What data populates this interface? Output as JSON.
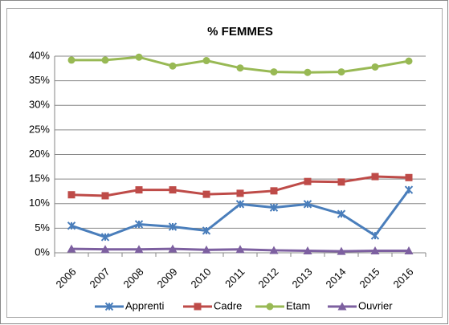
{
  "chart_data": {
    "type": "line",
    "title": "% FEMMES",
    "categories": [
      "2006",
      "2007",
      "2008",
      "2009",
      "2010",
      "2011",
      "2012",
      "2013",
      "2014",
      "2015",
      "2016"
    ],
    "series": [
      {
        "name": "Apprenti",
        "color": "#4a7ebb",
        "marker": "x",
        "values": [
          5.5,
          3.2,
          5.8,
          5.3,
          4.5,
          9.9,
          9.2,
          9.9,
          7.9,
          3.5,
          12.8
        ]
      },
      {
        "name": "Cadre",
        "color": "#be4b48",
        "marker": "square",
        "values": [
          11.8,
          11.6,
          12.8,
          12.8,
          11.9,
          12.1,
          12.6,
          14.5,
          14.4,
          15.5,
          15.3
        ]
      },
      {
        "name": "Etam",
        "color": "#98b954",
        "marker": "circle",
        "values": [
          39.2,
          39.2,
          39.8,
          38.0,
          39.1,
          37.6,
          36.8,
          36.7,
          36.8,
          37.8,
          39.0
        ]
      },
      {
        "name": "Ouvrier",
        "color": "#7d60a0",
        "marker": "triangle",
        "values": [
          0.8,
          0.7,
          0.7,
          0.8,
          0.6,
          0.7,
          0.5,
          0.4,
          0.3,
          0.4,
          0.4
        ]
      }
    ],
    "ylim": [
      0,
      40
    ],
    "yticks": [
      {
        "value": 0,
        "label": "0%"
      },
      {
        "value": 5,
        "label": "5%"
      },
      {
        "value": 10,
        "label": "10%"
      },
      {
        "value": 15,
        "label": "15%"
      },
      {
        "value": 20,
        "label": "20%"
      },
      {
        "value": 25,
        "label": "25%"
      },
      {
        "value": 30,
        "label": "30%"
      },
      {
        "value": 35,
        "label": "35%"
      },
      {
        "value": 40,
        "label": "40%"
      }
    ],
    "grid": true,
    "legend": "bottom"
  }
}
